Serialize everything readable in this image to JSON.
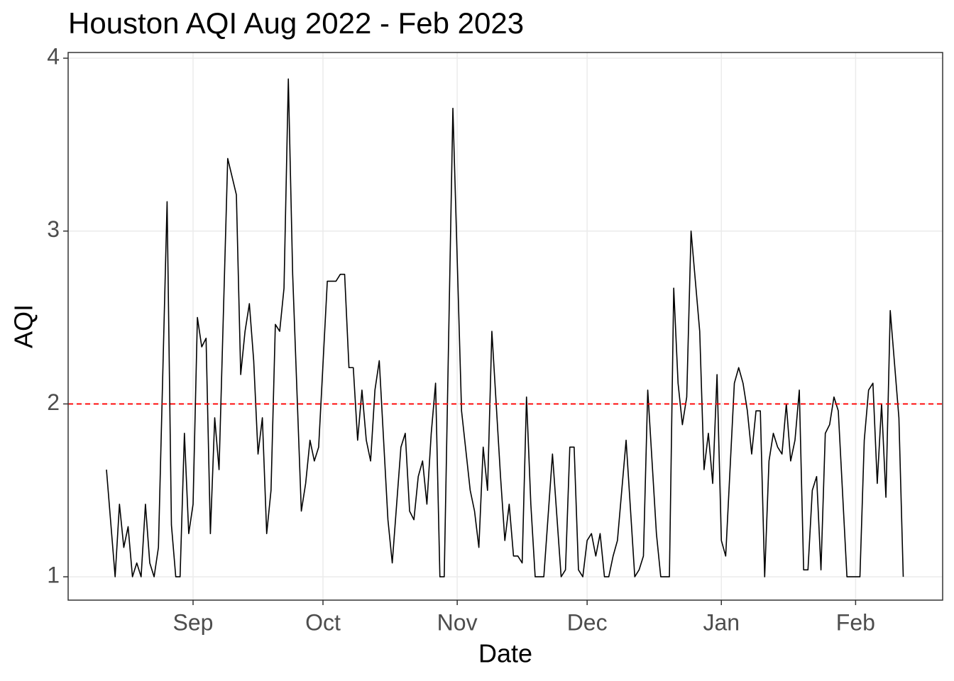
{
  "chart_data": {
    "type": "line",
    "title": "Houston AQI Aug 2022 - Feb 2023",
    "x_label": "Date",
    "y_label": "AQI",
    "x": [
      -20,
      -18,
      -17,
      -16,
      -15,
      -14,
      -13,
      -12,
      -11,
      -10,
      -9,
      -8,
      -6,
      -5,
      -4,
      -3,
      -2,
      -1,
      0,
      1,
      2,
      3,
      4,
      5,
      6,
      8,
      10,
      11,
      12,
      13,
      14,
      15,
      16,
      17,
      18,
      19,
      20,
      21,
      22,
      23,
      25,
      26,
      27,
      28,
      29,
      31,
      33,
      34,
      35,
      36,
      37,
      38,
      39,
      40,
      41,
      42,
      43,
      44,
      45,
      46,
      48,
      49,
      50,
      51,
      52,
      53,
      54,
      55,
      56,
      57,
      58,
      60,
      62,
      64,
      65,
      66,
      67,
      68,
      69,
      70,
      71,
      72,
      73,
      74,
      75,
      76,
      77,
      78,
      79,
      81,
      83,
      85,
      86,
      87,
      88,
      89,
      90,
      91,
      92,
      93,
      94,
      95,
      96,
      97,
      98,
      100,
      102,
      103,
      104,
      105,
      107,
      108,
      110,
      111,
      112,
      113,
      114,
      115,
      117,
      118,
      119,
      120,
      121,
      122,
      123,
      125,
      126,
      127,
      128,
      129,
      130,
      131,
      132,
      133,
      134,
      135,
      136,
      137,
      138,
      139,
      140,
      141,
      142,
      143,
      144,
      145,
      146,
      147,
      148,
      149,
      151,
      153,
      154,
      155,
      156,
      157,
      158,
      159,
      160,
      161,
      163,
      164
    ],
    "values": [
      1.62,
      1.0,
      1.42,
      1.17,
      1.29,
      1.0,
      1.08,
      1.0,
      1.42,
      1.08,
      1.0,
      1.17,
      3.17,
      1.3,
      1.0,
      1.0,
      1.83,
      1.25,
      1.42,
      2.5,
      2.33,
      2.38,
      1.25,
      1.92,
      1.62,
      3.42,
      3.21,
      2.17,
      2.42,
      2.58,
      2.25,
      1.71,
      1.92,
      1.25,
      1.5,
      2.46,
      2.42,
      2.67,
      3.88,
      2.75,
      1.38,
      1.54,
      1.79,
      1.67,
      1.75,
      2.71,
      2.71,
      2.75,
      2.75,
      2.21,
      2.21,
      1.79,
      2.08,
      1.79,
      1.67,
      2.08,
      2.25,
      1.79,
      1.33,
      1.08,
      1.75,
      1.83,
      1.38,
      1.33,
      1.58,
      1.67,
      1.42,
      1.83,
      2.12,
      1.0,
      1.0,
      3.71,
      1.96,
      1.5,
      1.38,
      1.17,
      1.75,
      1.5,
      2.42,
      2.0,
      1.58,
      1.21,
      1.42,
      1.12,
      1.12,
      1.08,
      2.04,
      1.42,
      1.0,
      1.0,
      1.71,
      1.0,
      1.04,
      1.75,
      1.75,
      1.04,
      1.0,
      1.21,
      1.25,
      1.12,
      1.25,
      1.0,
      1.0,
      1.12,
      1.21,
      1.79,
      1.0,
      1.04,
      1.12,
      2.08,
      1.25,
      1.0,
      1.0,
      2.67,
      2.12,
      1.88,
      2.04,
      3.0,
      2.42,
      1.62,
      1.83,
      1.54,
      2.17,
      1.21,
      1.12,
      2.12,
      2.21,
      2.12,
      1.96,
      1.71,
      1.96,
      1.96,
      1.0,
      1.67,
      1.83,
      1.75,
      1.71,
      2.0,
      1.67,
      1.79,
      2.08,
      1.04,
      1.04,
      1.5,
      1.58,
      1.04,
      1.83,
      1.88,
      2.04,
      1.96,
      1.0,
      1.0,
      1.0,
      1.79,
      2.08,
      2.12,
      1.54,
      2.0,
      1.46,
      2.54,
      1.92,
      1.0
    ],
    "color": "#000000",
    "xlim": [
      -28.85,
      173.1
    ],
    "xticks": [
      {
        "value": 0,
        "label": "Sep"
      },
      {
        "value": 30,
        "label": "Oct"
      },
      {
        "value": 61,
        "label": "Nov"
      },
      {
        "value": 91,
        "label": "Dec"
      },
      {
        "value": 122,
        "label": "Jan"
      },
      {
        "value": 153,
        "label": "Feb"
      }
    ],
    "ylim": [
      0.865,
      4.033
    ],
    "yticks": [
      1,
      2,
      3,
      4
    ],
    "grid": true,
    "reference_line": {
      "value": 2,
      "color": "#ff0000",
      "style": "dashed"
    }
  }
}
